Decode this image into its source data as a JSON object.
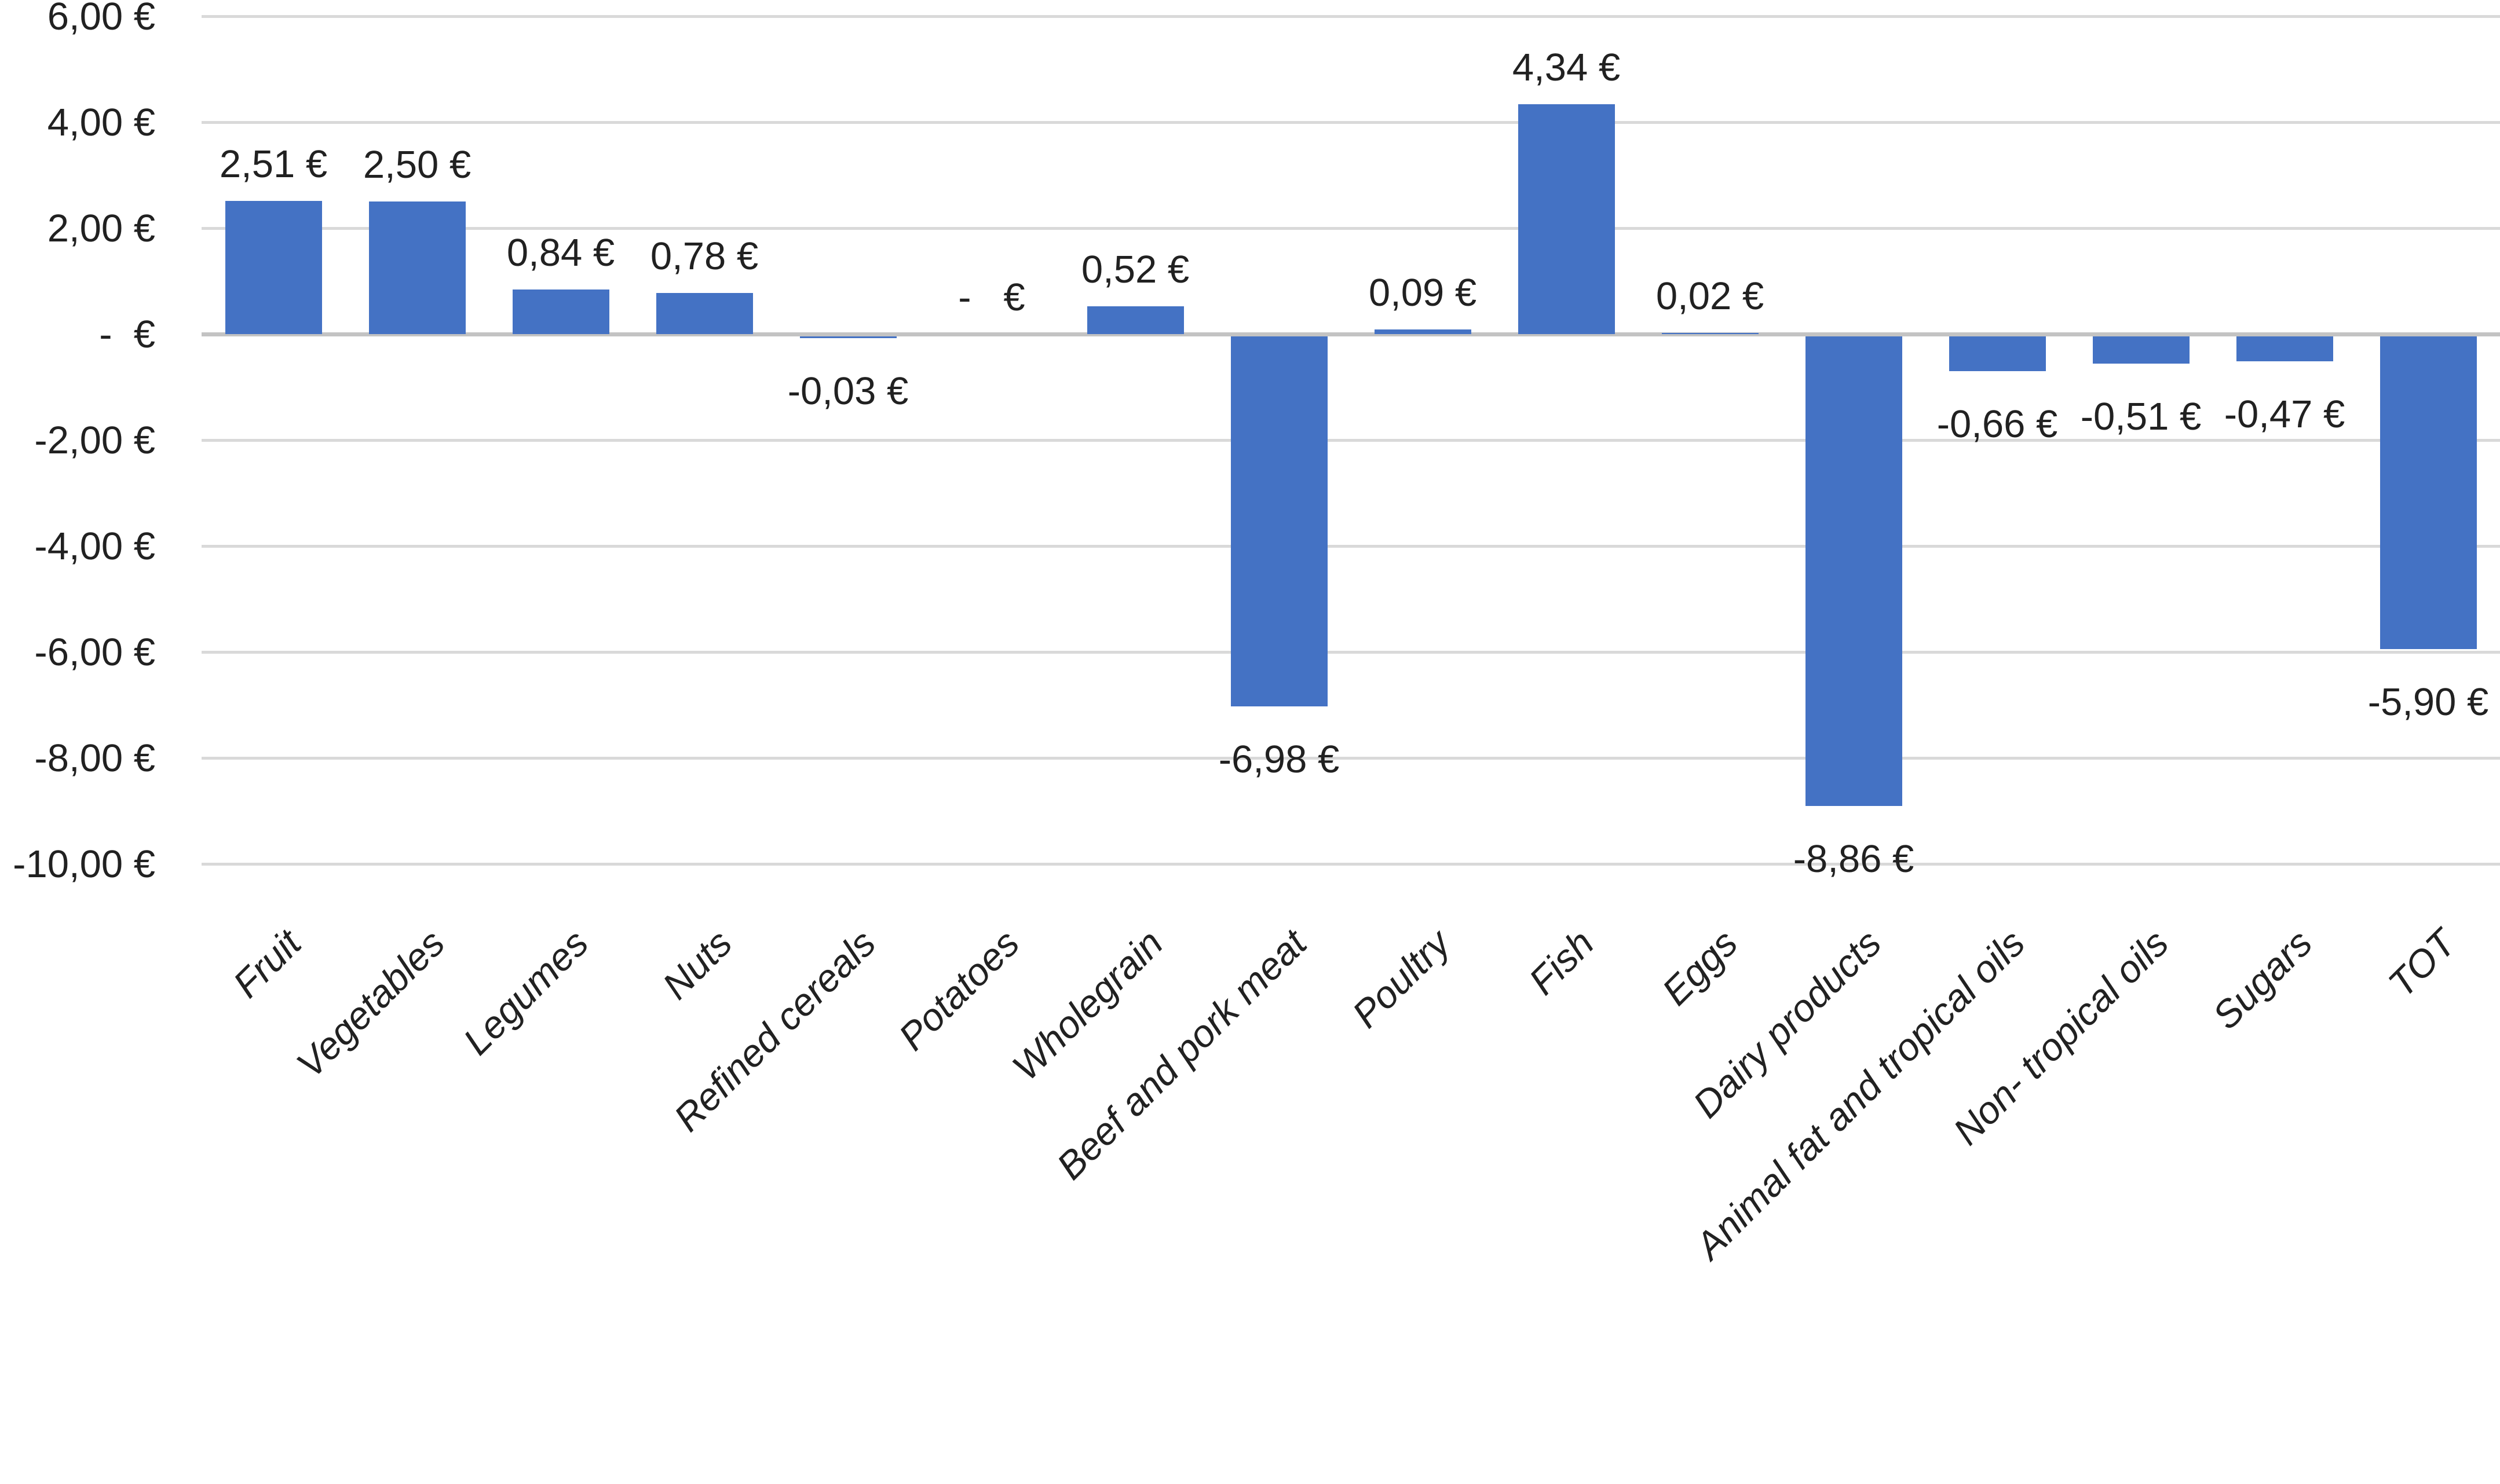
{
  "chart_data": {
    "type": "bar",
    "title": "",
    "xlabel": "",
    "ylabel": "",
    "unit": "EUR",
    "number_format": "european-comma, euro sign suffix",
    "categories": [
      "Fruit",
      "Vegetables",
      "Legumes",
      "Nuts",
      "Refined cereals",
      "Potatoes",
      "Wholegrain",
      "Beef and pork meat",
      "Poultry",
      "Fish",
      "Eggs",
      "Dairy products",
      "Animal fat and tropical oils",
      "Non- tropical oils",
      "Sugars",
      "TOT"
    ],
    "values": [
      2.51,
      2.5,
      0.84,
      0.78,
      -0.03,
      0,
      0.52,
      -6.98,
      0.09,
      4.34,
      0.02,
      -8.86,
      -0.66,
      -0.51,
      -0.47,
      -5.9
    ],
    "data_labels": [
      "2,51 €",
      "2,50 €",
      "0,84 €",
      "0,78 €",
      "-0,03 €",
      "-   €",
      "0,52 €",
      "-6,98 €",
      "0,09 €",
      "4,34 €",
      "0,02 €",
      "-8,86 €",
      "-0,66 €",
      "-0,51 €",
      "-0,47 €",
      "-5,90 €"
    ],
    "y_ticks": [
      {
        "value": 6,
        "label": "6,00 €"
      },
      {
        "value": 4,
        "label": "4,00 €"
      },
      {
        "value": 2,
        "label": "2,00 €"
      },
      {
        "value": 0,
        "label": "-  €"
      },
      {
        "value": -2,
        "label": "-2,00 €"
      },
      {
        "value": -4,
        "label": "-4,00 €"
      },
      {
        "value": -6,
        "label": "-6,00 €"
      },
      {
        "value": -8,
        "label": "-8,00 €"
      },
      {
        "value": -10,
        "label": "-10,00 €"
      }
    ],
    "ylim": [
      -10,
      6
    ],
    "grid": "horizontal",
    "legend": "none",
    "category_label_style": "italic, rotated 45deg",
    "bar_color": "#4472C4",
    "gridline_color": "#D9D9D9",
    "zero_line_color": "#C3C3C3",
    "text_color": "#212121",
    "background_color": "#FFFFFF"
  }
}
